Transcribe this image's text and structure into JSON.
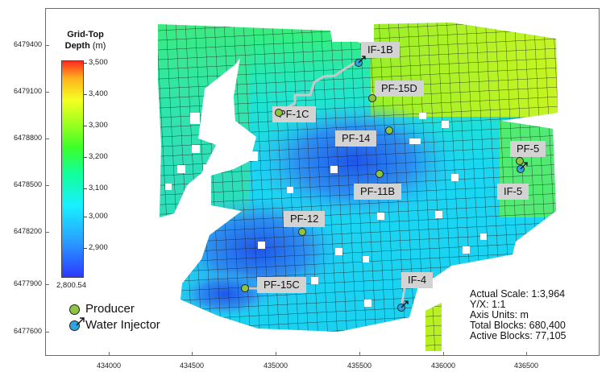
{
  "colorbar": {
    "title": "Grid-Top",
    "title2": "Depth",
    "unit": "(m)",
    "labels": [
      "3,500",
      "3,400",
      "3,300",
      "3,200",
      "3,100",
      "3,000",
      "2,900"
    ],
    "min_label": "2,800.54"
  },
  "axes": {
    "y_ticks": [
      "6479400",
      "6479100",
      "6478800",
      "6478500",
      "6478200",
      "6477900",
      "6477600"
    ],
    "x_ticks": [
      "434000",
      "434500",
      "435000",
      "435500",
      "436000",
      "436500"
    ]
  },
  "wells": [
    {
      "name": "IF-1B",
      "type": "injector"
    },
    {
      "name": "PF-15D",
      "type": "producer"
    },
    {
      "name": "PF-1C",
      "type": "producer"
    },
    {
      "name": "PF-14",
      "type": "producer"
    },
    {
      "name": "PF-5",
      "type": "producer"
    },
    {
      "name": "IF-5",
      "type": "injector"
    },
    {
      "name": "PF-11B",
      "type": "producer"
    },
    {
      "name": "PF-12",
      "type": "producer"
    },
    {
      "name": "PF-15C",
      "type": "producer"
    },
    {
      "name": "IF-4",
      "type": "injector"
    }
  ],
  "legend": {
    "producer_label": "Producer",
    "injector_label": "Water Injector",
    "producer_color": "#8cc63f",
    "injector_color": "#2aa6e0"
  },
  "info": {
    "scale": "Actual Scale: 1:3,964",
    "yx": "Y/X: 1:1",
    "units": "Axis Units: m",
    "total_blocks": "Total Blocks: 680,400",
    "active_blocks": "Active Blocks: 77,105"
  }
}
